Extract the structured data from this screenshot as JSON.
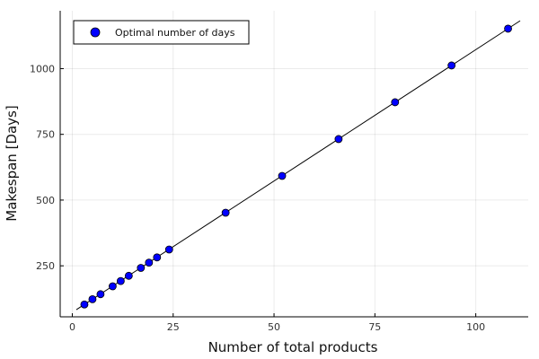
{
  "chart_data": {
    "type": "scatter",
    "title": "",
    "xlabel": "Number of total products",
    "ylabel": "Makespan [Days]",
    "xlim": [
      -3,
      113
    ],
    "ylim": [
      56,
      1220
    ],
    "xticks": [
      0,
      25,
      50,
      75,
      100
    ],
    "yticks": [
      250,
      500,
      750,
      1000
    ],
    "grid": true,
    "legend_position": "top-left",
    "series": [
      {
        "name": "Optimal number of days",
        "kind": "scatter",
        "color": "#0000ff",
        "x": [
          3,
          5,
          7,
          10,
          12,
          14,
          17,
          19,
          21,
          24,
          38,
          52,
          66,
          80,
          94,
          108
        ],
        "y": [
          103,
          123,
          142,
          172,
          192,
          212,
          242,
          262,
          282,
          312,
          452,
          592,
          732,
          872,
          1012,
          1152
        ]
      },
      {
        "name": "",
        "kind": "line",
        "color": "#000000",
        "x": [
          1,
          111
        ],
        "y": [
          83,
          1182
        ]
      }
    ]
  }
}
